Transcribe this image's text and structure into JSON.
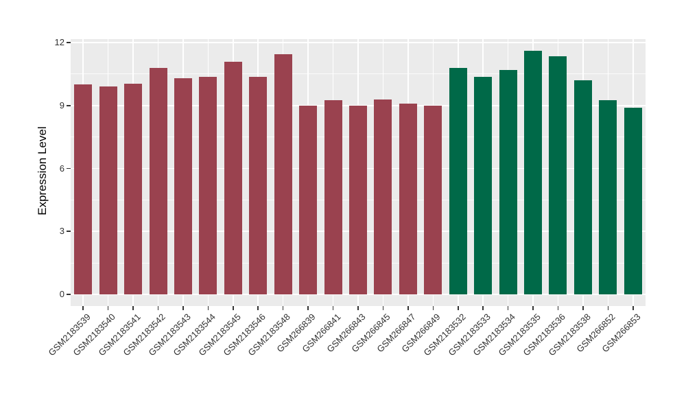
{
  "figure": {
    "panel_background": "#EBEBEB",
    "grid_color": "#FFFFFF",
    "axis_text_color": "#303030",
    "axis_title_color": "#000000",
    "tick_color": "#333333",
    "group_colors": {
      "group1": "#9A424F",
      "group2": "#006948"
    }
  },
  "chart_data": {
    "type": "bar",
    "title": "",
    "xlabel": "",
    "ylabel": "Expression Level",
    "ylim": [
      0,
      12.2
    ],
    "yticks": [
      0,
      3,
      6,
      9,
      12
    ],
    "yticks_minor": [
      1.5,
      4.5,
      7.5,
      10.5
    ],
    "grid": true,
    "legend_position": "none",
    "categories": [
      "GSM2183539",
      "GSM2183540",
      "GSM2183541",
      "GSM2183542",
      "GSM2183543",
      "GSM2183544",
      "GSM2183545",
      "GSM2183546",
      "GSM2183548",
      "GSM266839",
      "GSM266841",
      "GSM266843",
      "GSM266845",
      "GSM266847",
      "GSM266849",
      "GSM2183532",
      "GSM2183533",
      "GSM2183534",
      "GSM2183535",
      "GSM2183536",
      "GSM2183538",
      "GSM266852",
      "GSM266853"
    ],
    "values": [
      10.0,
      9.9,
      10.05,
      10.8,
      10.3,
      10.35,
      11.1,
      10.35,
      11.45,
      9.0,
      9.25,
      9.0,
      9.3,
      9.1,
      9.0,
      10.8,
      10.35,
      10.7,
      11.6,
      11.35,
      10.2,
      9.25,
      8.9
    ],
    "colors": [
      "#9A424F",
      "#9A424F",
      "#9A424F",
      "#9A424F",
      "#9A424F",
      "#9A424F",
      "#9A424F",
      "#9A424F",
      "#9A424F",
      "#9A424F",
      "#9A424F",
      "#9A424F",
      "#9A424F",
      "#9A424F",
      "#9A424F",
      "#006948",
      "#006948",
      "#006948",
      "#006948",
      "#006948",
      "#006948",
      "#006948",
      "#006948"
    ]
  }
}
